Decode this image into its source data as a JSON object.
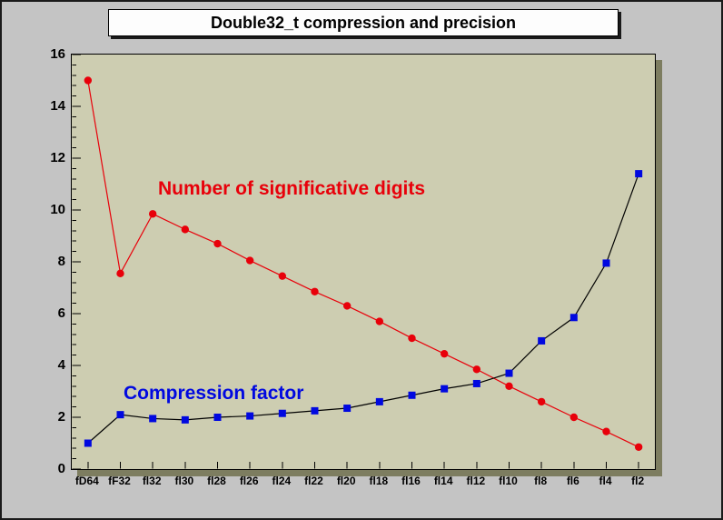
{
  "title": "Double32_t compression and precision",
  "annotations": {
    "red_label": "Number of significative digits",
    "blue_label": "Compression factor"
  },
  "colors": {
    "canvas_bg": "#c4c4c4",
    "pad_bg": "#cdcdb1",
    "bevel_dark": "#7d7d60",
    "title_bg": "#fdfdfd",
    "title_shadow": "#1a1a1a",
    "red_series": "#e8000a",
    "blue_series": "#0008e0",
    "blue_line": "#000000",
    "axis_color": "#000000"
  },
  "chart_data": {
    "type": "line",
    "title": "Double32_t compression and precision",
    "categories": [
      "fD64",
      "fF32",
      "fl32",
      "fl30",
      "fl28",
      "fl26",
      "fl24",
      "fl22",
      "fl20",
      "fl18",
      "fl16",
      "fl14",
      "fl12",
      "fl10",
      "fl8",
      "fl6",
      "fl4",
      "fl2"
    ],
    "series": [
      {
        "name": "Number of significative digits",
        "marker": "circle",
        "color": "#e8000a",
        "line_color": "#e8000a",
        "values": [
          15.0,
          7.55,
          9.85,
          9.25,
          8.7,
          8.05,
          7.45,
          6.85,
          6.3,
          5.7,
          5.05,
          4.45,
          3.85,
          3.2,
          2.6,
          2.0,
          1.45,
          0.85
        ]
      },
      {
        "name": "Compression factor",
        "marker": "square",
        "color": "#0008e0",
        "line_color": "#000000",
        "values": [
          1.0,
          2.1,
          1.95,
          1.9,
          2.0,
          2.05,
          2.15,
          2.25,
          2.35,
          2.6,
          2.85,
          3.1,
          3.3,
          3.7,
          4.95,
          5.85,
          7.95,
          11.4
        ]
      }
    ],
    "xlabel": "",
    "ylabel": "",
    "ylim": [
      0,
      16
    ],
    "yticks": [
      0,
      2,
      4,
      6,
      8,
      10,
      12,
      14,
      16
    ],
    "y_minor_step": 0.4,
    "grid": false,
    "legend_position": "none"
  }
}
